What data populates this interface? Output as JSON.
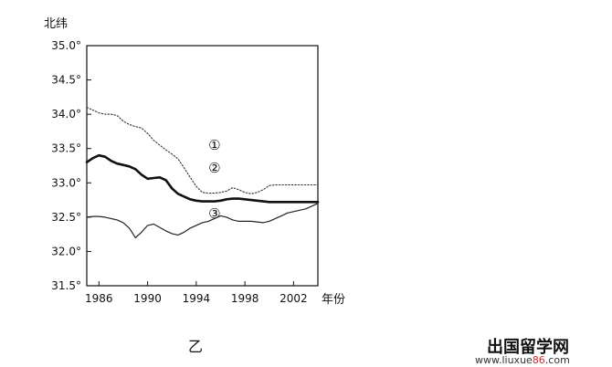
{
  "chart_data": {
    "type": "line",
    "ylabel": "北纬",
    "xlabel": "年份",
    "ylim": [
      31.5,
      35.0
    ],
    "xlim": [
      1985,
      2004
    ],
    "y_ticks": [
      "31.5°",
      "32.0°",
      "32.5°",
      "33.0°",
      "33.5°",
      "34.0°",
      "34.5°",
      "35.0°"
    ],
    "y_tick_values": [
      31.5,
      32.0,
      32.5,
      33.0,
      33.5,
      34.0,
      34.5,
      35.0
    ],
    "x_ticks": [
      "1986",
      "1990",
      "1994",
      "1998",
      "2002"
    ],
    "x_tick_values": [
      1986,
      1990,
      1994,
      1998,
      2002
    ],
    "grid": false,
    "series": [
      {
        "name": "①",
        "style": "dotted",
        "color": "#333333",
        "x": [
          1985,
          1985.5,
          1986,
          1986.5,
          1987,
          1987.5,
          1988,
          1988.5,
          1989,
          1989.5,
          1990,
          1990.5,
          1991,
          1991.5,
          1992,
          1992.5,
          1993,
          1993.5,
          1994,
          1994.5,
          1995,
          1995.5,
          1996,
          1996.5,
          1997,
          1997.5,
          1998,
          1998.5,
          1999,
          1999.5,
          2000,
          2000.5,
          2001,
          2001.5,
          2002,
          2002.5,
          2003,
          2003.5,
          2004
        ],
        "y": [
          34.1,
          34.06,
          34.02,
          34.0,
          34.0,
          33.98,
          33.9,
          33.85,
          33.82,
          33.8,
          33.72,
          33.62,
          33.55,
          33.48,
          33.42,
          33.35,
          33.22,
          33.08,
          32.95,
          32.86,
          32.85,
          32.85,
          32.86,
          32.88,
          32.93,
          32.9,
          32.86,
          32.84,
          32.86,
          32.9,
          32.96,
          32.97,
          32.97,
          32.97,
          32.97,
          32.97,
          32.97,
          32.97,
          32.97
        ]
      },
      {
        "name": "②",
        "style": "solid-bold",
        "color": "#111111",
        "x": [
          1985,
          1985.5,
          1986,
          1986.5,
          1987,
          1987.5,
          1988,
          1988.5,
          1989,
          1989.5,
          1990,
          1990.5,
          1991,
          1991.5,
          1992,
          1992.5,
          1993,
          1993.5,
          1994,
          1994.5,
          1995,
          1995.5,
          1996,
          1996.5,
          1997,
          1997.5,
          1998,
          1998.5,
          1999,
          1999.5,
          2000,
          2000.5,
          2001,
          2001.5,
          2002,
          2002.5,
          2003,
          2003.5,
          2004
        ],
        "y": [
          33.3,
          33.36,
          33.4,
          33.38,
          33.32,
          33.28,
          33.26,
          33.24,
          33.2,
          33.12,
          33.06,
          33.07,
          33.08,
          33.04,
          32.92,
          32.84,
          32.8,
          32.76,
          32.74,
          32.73,
          32.73,
          32.73,
          32.74,
          32.76,
          32.77,
          32.77,
          32.76,
          32.75,
          32.74,
          32.73,
          32.72,
          32.72,
          32.72,
          32.72,
          32.72,
          32.72,
          32.72,
          32.72,
          32.72
        ]
      },
      {
        "name": "③",
        "style": "solid-thin",
        "color": "#222222",
        "x": [
          1985,
          1985.5,
          1986,
          1986.5,
          1987,
          1987.5,
          1988,
          1988.5,
          1989,
          1989.5,
          1990,
          1990.5,
          1991,
          1991.5,
          1992,
          1992.5,
          1993,
          1993.5,
          1994,
          1994.5,
          1995,
          1995.5,
          1996,
          1996.5,
          1997,
          1997.5,
          1998,
          1998.5,
          1999,
          1999.5,
          2000,
          2000.5,
          2001,
          2001.5,
          2002,
          2002.5,
          2003,
          2003.5,
          2004
        ],
        "y": [
          32.5,
          32.51,
          32.51,
          32.5,
          32.48,
          32.46,
          32.42,
          32.34,
          32.2,
          32.28,
          32.38,
          32.4,
          32.35,
          32.3,
          32.26,
          32.24,
          32.28,
          32.34,
          32.38,
          32.42,
          32.44,
          32.48,
          32.52,
          32.5,
          32.46,
          32.44,
          32.44,
          32.44,
          32.43,
          32.42,
          32.44,
          32.48,
          32.52,
          32.56,
          32.58,
          32.6,
          32.62,
          32.66,
          32.7
        ]
      }
    ],
    "callouts": [
      {
        "label": "①",
        "x": 1995.5,
        "y": 33.55
      },
      {
        "label": "②",
        "x": 1995.5,
        "y": 33.22
      },
      {
        "label": "③",
        "x": 1995.5,
        "y": 32.55
      }
    ]
  },
  "caption": "乙",
  "watermark": {
    "title": "出国留学网",
    "url_prefix": "www.liuxue",
    "url_highlight": "86",
    "url_suffix": ".com"
  }
}
